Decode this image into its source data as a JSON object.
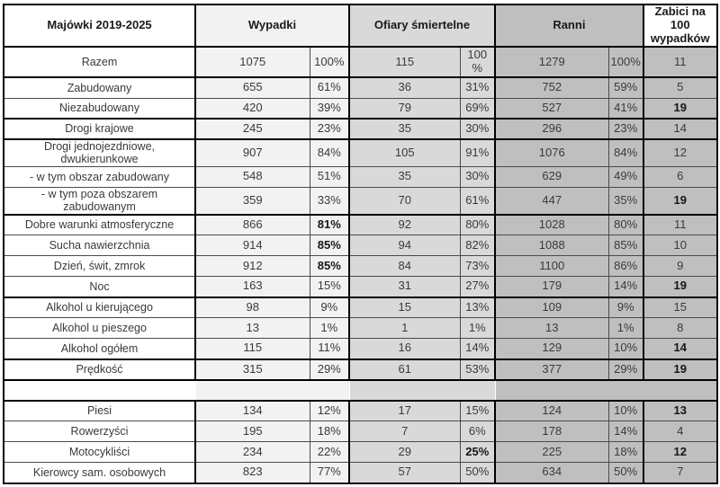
{
  "colors": {
    "label_bg": "#FFFFFF",
    "wypadki_bg": "#F2F2F2",
    "ofiary_bg": "#D9D9D9",
    "ranni_bg": "#BFBFBF",
    "border_thick": "#000000"
  },
  "table": {
    "header": {
      "label": "Majówki 2019-2025",
      "wypadki": "Wypadki",
      "ofiary": "Ofiary śmiertelne",
      "ranni": "Ranni",
      "zabici": "Zabici na 100 wypadków"
    },
    "columns": [
      "label",
      "wypadki_n",
      "wypadki_pct",
      "ofiary_n",
      "ofiary_pct",
      "ranni_n",
      "ranni_pct",
      "zabici_na_100"
    ],
    "rows": [
      {
        "label": "Razem",
        "cells": [
          "1075",
          "100%",
          "115",
          "100\n%",
          "1279",
          "100%",
          "11"
        ],
        "bold": [],
        "thick_bottom": true,
        "tall": true
      },
      {
        "label": "Zabudowany",
        "cells": [
          "655",
          "61%",
          "36",
          "31%",
          "752",
          "59%",
          "5"
        ],
        "bold": []
      },
      {
        "label": "Niezabudowany",
        "cells": [
          "420",
          "39%",
          "79",
          "69%",
          "527",
          "41%",
          "19"
        ],
        "bold": [
          6
        ],
        "thick_bottom": true
      },
      {
        "label": "Drogi krajowe",
        "cells": [
          "245",
          "23%",
          "35",
          "30%",
          "296",
          "23%",
          "14"
        ],
        "bold": [],
        "thick_bottom": true
      },
      {
        "label": "Drogi jednojezdniowe, dwukierunkowe",
        "cells": [
          "907",
          "84%",
          "105",
          "91%",
          "1076",
          "84%",
          "12"
        ],
        "bold": []
      },
      {
        "label": "- w tym obszar zabudowany",
        "cells": [
          "548",
          "51%",
          "35",
          "30%",
          "629",
          "49%",
          "6"
        ],
        "bold": []
      },
      {
        "label": "- w tym poza obszarem zabudowanym",
        "cells": [
          "359",
          "33%",
          "70",
          "61%",
          "447",
          "35%",
          "19"
        ],
        "bold": [
          6
        ],
        "thick_bottom": true
      },
      {
        "label": "Dobre warunki atmosferyczne",
        "cells": [
          "866",
          "81%",
          "92",
          "80%",
          "1028",
          "80%",
          "11"
        ],
        "bold": [
          1
        ]
      },
      {
        "label": "Sucha nawierzchnia",
        "cells": [
          "914",
          "85%",
          "94",
          "82%",
          "1088",
          "85%",
          "10"
        ],
        "bold": [
          1
        ]
      },
      {
        "label": "Dzień, świt, zmrok",
        "cells": [
          "912",
          "85%",
          "84",
          "73%",
          "1100",
          "86%",
          "9"
        ],
        "bold": [
          1
        ]
      },
      {
        "label": "Noc",
        "cells": [
          "163",
          "15%",
          "31",
          "27%",
          "179",
          "14%",
          "19"
        ],
        "bold": [
          6
        ],
        "thick_bottom": true
      },
      {
        "label": "Alkohol u kierującego",
        "cells": [
          "98",
          "9%",
          "15",
          "13%",
          "109",
          "9%",
          "15"
        ],
        "bold": []
      },
      {
        "label": "Alkohol u pieszego",
        "cells": [
          "13",
          "1%",
          "1",
          "1%",
          "13",
          "1%",
          "8"
        ],
        "bold": []
      },
      {
        "label": "Alkohol ogółem",
        "cells": [
          "115",
          "11%",
          "16",
          "14%",
          "129",
          "10%",
          "14"
        ],
        "bold": [
          6
        ],
        "thick_bottom": true
      },
      {
        "label": "Prędkość",
        "cells": [
          "315",
          "29%",
          "61",
          "53%",
          "377",
          "29%",
          "19"
        ],
        "bold": [
          6
        ],
        "thick_bottom": true
      },
      {
        "label": "",
        "cells": [
          "",
          "",
          "",
          "",
          "",
          "",
          ""
        ],
        "bold": [],
        "spacer": true,
        "thick_bottom": true
      },
      {
        "label": "Piesi",
        "cells": [
          "134",
          "12%",
          "17",
          "15%",
          "124",
          "10%",
          "13"
        ],
        "bold": [
          6
        ]
      },
      {
        "label": "Rowerzyści",
        "cells": [
          "195",
          "18%",
          "7",
          "6%",
          "178",
          "14%",
          "4"
        ],
        "bold": []
      },
      {
        "label": "Motocykliści",
        "cells": [
          "234",
          "22%",
          "29",
          "25%",
          "225",
          "18%",
          "12"
        ],
        "bold": [
          3,
          6
        ]
      },
      {
        "label": "Kierowcy sam. osobowych",
        "cells": [
          "823",
          "77%",
          "57",
          "50%",
          "634",
          "50%",
          "7"
        ],
        "bold": []
      }
    ]
  }
}
